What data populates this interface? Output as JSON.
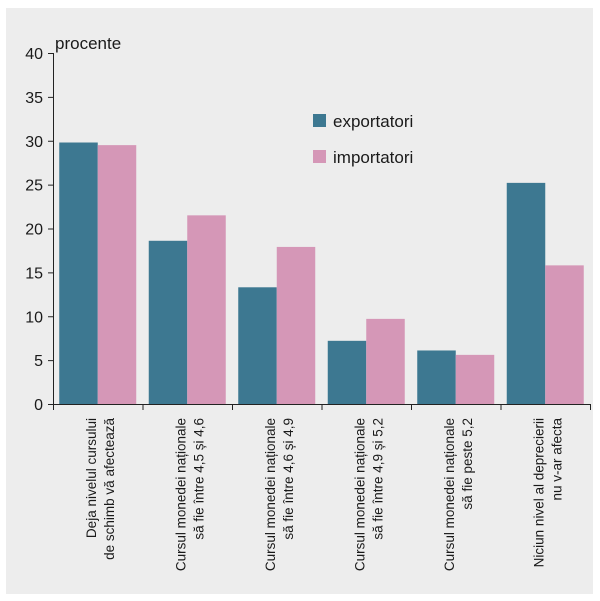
{
  "chart_data": {
    "type": "bar",
    "unit_label": "procente",
    "categories": [
      [
        "Deja nivelul cursului",
        "de schimb vă afectează"
      ],
      [
        "Cursul monedei naționale",
        "să fie între 4,5 și 4,6"
      ],
      [
        "Cursul monedei naționale",
        "să fie între 4,6 și 4,9"
      ],
      [
        "Cursul monedei naționale",
        "să fie între 4,9 și 5,2"
      ],
      [
        "Cursul monedei naționale",
        "să fie peste 5,2"
      ],
      [
        "Niciun nivel al deprecierii",
        "nu v-ar afecta"
      ]
    ],
    "series": [
      {
        "name": "exportatori",
        "color": "#3d7891",
        "values": [
          29.8,
          18.6,
          13.3,
          7.2,
          6.1,
          25.2
        ]
      },
      {
        "name": "importatori",
        "color": "#d597b7",
        "values": [
          29.5,
          21.5,
          17.9,
          9.7,
          5.6,
          15.8
        ]
      }
    ],
    "ylim": [
      0,
      40
    ],
    "yticks": [
      "0",
      "5",
      "10",
      "15",
      "20",
      "25",
      "30",
      "35",
      "40"
    ],
    "grid": false,
    "legend_position": "top-right"
  }
}
